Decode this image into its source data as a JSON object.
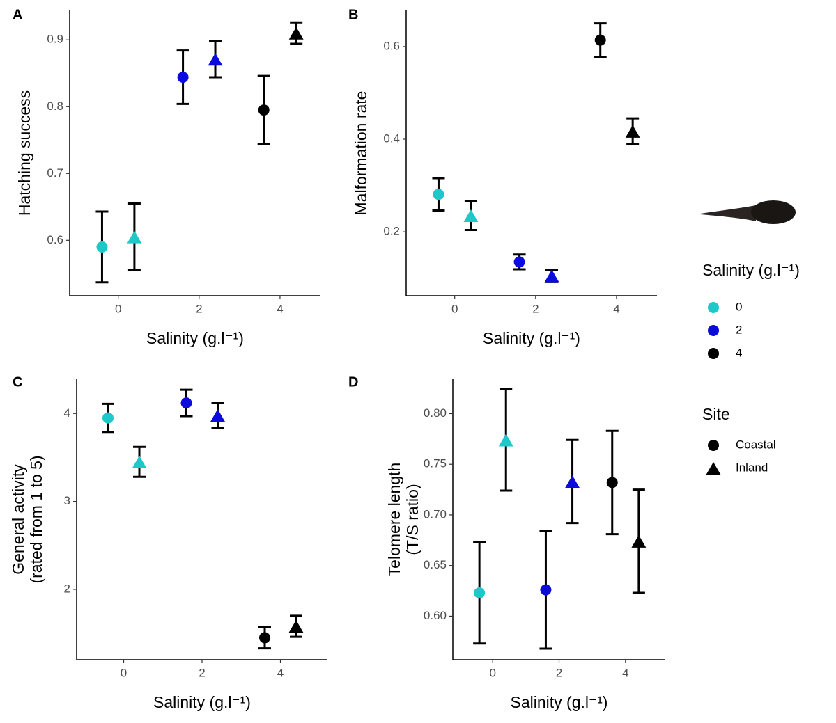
{
  "chart_data": [
    {
      "type": "scatter",
      "label": "A",
      "x_label": "Salinity (g.l⁻¹)",
      "y_label": "Hatching success",
      "xlim": [
        -1.2,
        5.0
      ],
      "xticks": [
        0,
        2,
        4
      ],
      "ylim": [
        0.517,
        0.944
      ],
      "yticks": [
        0.6,
        0.7,
        0.8,
        0.9
      ],
      "series": [
        {
          "marker": "circle",
          "x": [
            -0.4,
            1.6,
            3.6
          ],
          "values": [
            0.59,
            0.844,
            0.795
          ],
          "errors": [
            0.053,
            0.04,
            0.051
          ],
          "colors": [
            "#1ec8c8",
            "#0b0bdc",
            "#000000"
          ]
        },
        {
          "marker": "triangle",
          "x": [
            0.4,
            2.4,
            4.4
          ],
          "values": [
            0.605,
            0.871,
            0.91
          ],
          "errors": [
            0.05,
            0.027,
            0.016
          ],
          "colors": [
            "#1ec8c8",
            "#0b0bdc",
            "#000000"
          ]
        }
      ]
    },
    {
      "type": "scatter",
      "label": "B",
      "x_label": "Salinity (g.l⁻¹)",
      "y_label": "Malformation rate",
      "xlim": [
        -1.2,
        5.0
      ],
      "xticks": [
        0,
        2,
        4
      ],
      "ylim": [
        0.062,
        0.678
      ],
      "yticks": [
        0.2,
        0.4,
        0.6
      ],
      "series": [
        {
          "marker": "circle",
          "x": [
            -0.4,
            1.6,
            3.6
          ],
          "values": [
            0.281,
            0.135,
            0.614
          ],
          "errors": [
            0.035,
            0.016,
            0.036
          ],
          "colors": [
            "#1ec8c8",
            "#0b0bdc",
            "#000000"
          ]
        },
        {
          "marker": "triangle",
          "x": [
            0.4,
            2.4,
            4.4
          ],
          "values": [
            0.235,
            0.105,
            0.417
          ],
          "errors": [
            0.031,
            0.012,
            0.028
          ],
          "colors": [
            "#1ec8c8",
            "#0b0bdc",
            "#000000"
          ]
        }
      ]
    },
    {
      "type": "scatter",
      "label": "C",
      "x_label": "Salinity (g.l⁻¹)",
      "y_label": [
        "General activity",
        "(rated from 1 to 5)"
      ],
      "xlim": [
        -1.2,
        5.2
      ],
      "xticks": [
        0,
        2,
        4
      ],
      "ylim": [
        1.2,
        4.39
      ],
      "yticks": [
        2,
        3,
        4
      ],
      "series": [
        {
          "marker": "circle",
          "x": [
            -0.4,
            1.6,
            3.6
          ],
          "values": [
            3.95,
            4.12,
            1.45
          ],
          "errors": [
            0.16,
            0.15,
            0.12
          ],
          "colors": [
            "#1ec8c8",
            "#0b0bdc",
            "#000000"
          ]
        },
        {
          "marker": "triangle",
          "x": [
            0.4,
            2.4,
            4.4
          ],
          "values": [
            3.45,
            3.98,
            1.58
          ],
          "errors": [
            0.17,
            0.14,
            0.12
          ],
          "colors": [
            "#1ec8c8",
            "#0b0bdc",
            "#000000"
          ]
        }
      ]
    },
    {
      "type": "scatter",
      "label": "D",
      "x_label": "Salinity (g.l⁻¹)",
      "y_label": [
        "Telomere length",
        "(T/S ratio)"
      ],
      "xlim": [
        -1.2,
        5.2
      ],
      "xticks": [
        0,
        2,
        4
      ],
      "ylim": [
        0.557,
        0.834
      ],
      "yticks": [
        {
          "value": 0.6,
          "label": "0.60"
        },
        0.65,
        {
          "value": 0.7,
          "label": "0.70"
        },
        0.75,
        {
          "value": 0.8,
          "label": "0.80"
        }
      ],
      "series": [
        {
          "marker": "circle",
          "x": [
            -0.4,
            1.6,
            3.6
          ],
          "values": [
            0.623,
            0.626,
            0.732
          ],
          "errors": [
            0.05,
            0.058,
            0.051
          ],
          "colors": [
            "#1ec8c8",
            "#0b0bdc",
            "#000000"
          ]
        },
        {
          "marker": "triangle",
          "x": [
            0.4,
            2.4,
            4.4
          ],
          "values": [
            0.774,
            0.733,
            0.674
          ],
          "errors": [
            0.05,
            0.041,
            0.051
          ],
          "colors": [
            "#1ec8c8",
            "#0b0bdc",
            "#000000"
          ]
        }
      ]
    }
  ],
  "legend": {
    "salinity": {
      "title": "Salinity (g.l⁻¹)",
      "entries": [
        {
          "label": "0",
          "color": "#1ec8c8"
        },
        {
          "label": "2",
          "color": "#0b0bdc"
        },
        {
          "label": "4",
          "color": "#000000"
        }
      ]
    },
    "site": {
      "title": "Site",
      "entries": [
        {
          "label": "Coastal",
          "marker": "circle"
        },
        {
          "label": "Inland",
          "marker": "triangle"
        }
      ]
    }
  }
}
